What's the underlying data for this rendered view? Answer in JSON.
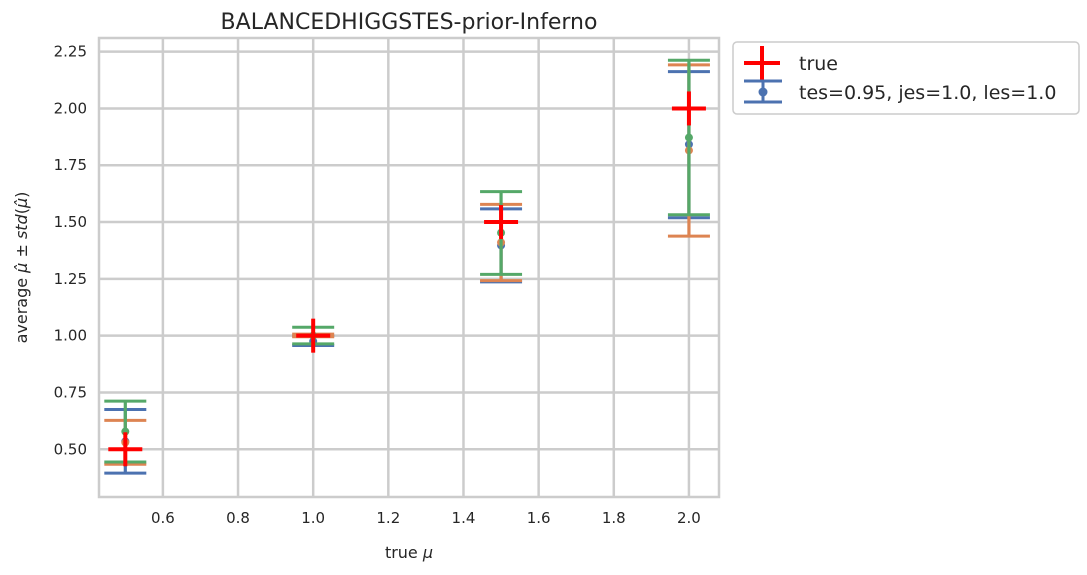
{
  "chart_data": {
    "type": "scatter",
    "title": "BALANCEDHIGGSTES-prior-Inferno",
    "xlabel": "true μ",
    "ylabel": "average μ̂ ± std(μ̂)",
    "xlim": [
      0.43,
      2.08
    ],
    "ylim": [
      0.29,
      2.31
    ],
    "x_ticks": [
      "0.6",
      "0.8",
      "1.0",
      "1.2",
      "1.4",
      "1.6",
      "1.8",
      "2.0"
    ],
    "y_ticks": [
      "0.50",
      "0.75",
      "1.00",
      "1.25",
      "1.50",
      "1.75",
      "2.00",
      "2.25"
    ],
    "grid": true,
    "legend_position": "outside-top-right",
    "true_series": {
      "name": "true",
      "color": "#ff0000",
      "points": [
        {
          "x": 0.5,
          "y": 0.5
        },
        {
          "x": 1.0,
          "y": 1.0
        },
        {
          "x": 1.5,
          "y": 1.5
        },
        {
          "x": 2.0,
          "y": 2.0
        }
      ]
    },
    "series": [
      {
        "name": "tes=0.95, jes=1.0, les=1.0",
        "color": "#4c72b0",
        "points": [
          {
            "x": 0.5,
            "mean": 0.535,
            "low": 0.395,
            "high": 0.675
          },
          {
            "x": 1.0,
            "mean": 0.975,
            "low": 0.957,
            "high": 0.999
          },
          {
            "x": 1.5,
            "mean": 1.397,
            "low": 1.237,
            "high": 1.558
          },
          {
            "x": 2.0,
            "mean": 1.842,
            "low": 1.519,
            "high": 2.162
          }
        ]
      },
      {
        "name": "",
        "color": "#dd8452",
        "points": [
          {
            "x": 0.5,
            "mean": 0.53,
            "low": 0.434,
            "high": 0.627
          },
          {
            "x": 1.0,
            "mean": 1.0,
            "low": 0.995,
            "high": 1.007
          },
          {
            "x": 1.5,
            "mean": 1.41,
            "low": 1.242,
            "high": 1.578
          },
          {
            "x": 2.0,
            "mean": 1.815,
            "low": 1.438,
            "high": 2.192
          }
        ]
      },
      {
        "name": "",
        "color": "#55a868",
        "points": [
          {
            "x": 0.5,
            "mean": 0.578,
            "low": 0.444,
            "high": 0.712
          },
          {
            "x": 1.0,
            "mean": 1.0,
            "low": 0.964,
            "high": 1.037
          },
          {
            "x": 1.5,
            "mean": 1.453,
            "low": 1.27,
            "high": 1.634
          },
          {
            "x": 2.0,
            "mean": 1.872,
            "low": 1.532,
            "high": 2.212
          }
        ]
      }
    ]
  }
}
